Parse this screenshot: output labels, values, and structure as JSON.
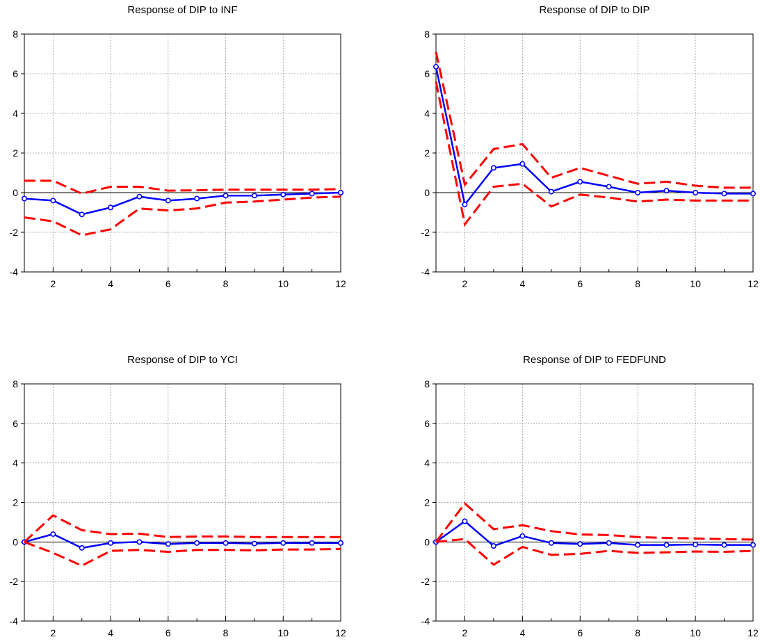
{
  "chart_data": [
    {
      "type": "line",
      "title": "Response of DIP to INF",
      "x": [
        1,
        2,
        3,
        4,
        5,
        6,
        7,
        8,
        9,
        10,
        11,
        12
      ],
      "xticks": [
        2,
        4,
        6,
        8,
        10,
        12
      ],
      "yticks": [
        -4,
        -2,
        0,
        2,
        4,
        6,
        8
      ],
      "xlim": [
        1,
        12
      ],
      "ylim": [
        -4,
        8
      ],
      "grid": true,
      "series": [
        {
          "role": "response",
          "color": "#0000ff",
          "style": "solid-markers",
          "values": [
            -0.3,
            -0.4,
            -1.1,
            -0.75,
            -0.2,
            -0.4,
            -0.3,
            -0.15,
            -0.15,
            -0.1,
            -0.05,
            0.0
          ]
        },
        {
          "role": "upper",
          "color": "#ff0000",
          "style": "dashed",
          "values": [
            0.6,
            0.6,
            -0.05,
            0.3,
            0.3,
            0.1,
            0.12,
            0.15,
            0.15,
            0.15,
            0.15,
            0.18
          ]
        },
        {
          "role": "lower",
          "color": "#ff0000",
          "style": "dashed",
          "values": [
            -1.25,
            -1.45,
            -2.15,
            -1.85,
            -0.8,
            -0.9,
            -0.8,
            -0.5,
            -0.45,
            -0.35,
            -0.25,
            -0.2
          ]
        }
      ]
    },
    {
      "type": "line",
      "title": "Response of DIP to DIP",
      "x": [
        1,
        2,
        3,
        4,
        5,
        6,
        7,
        8,
        9,
        10,
        11,
        12
      ],
      "xticks": [
        2,
        4,
        6,
        8,
        10,
        12
      ],
      "yticks": [
        -4,
        -2,
        0,
        2,
        4,
        6,
        8
      ],
      "xlim": [
        1,
        12
      ],
      "ylim": [
        -4,
        8
      ],
      "grid": true,
      "series": [
        {
          "role": "response",
          "color": "#0000ff",
          "style": "solid-markers",
          "values": [
            6.35,
            -0.6,
            1.25,
            1.45,
            0.05,
            0.55,
            0.3,
            0.0,
            0.1,
            0.0,
            -0.05,
            -0.05
          ]
        },
        {
          "role": "upper",
          "color": "#ff0000",
          "style": "dashed",
          "values": [
            7.1,
            0.4,
            2.2,
            2.45,
            0.75,
            1.25,
            0.85,
            0.45,
            0.55,
            0.35,
            0.25,
            0.25
          ]
        },
        {
          "role": "lower",
          "color": "#ff0000",
          "style": "dashed",
          "values": [
            5.6,
            -1.6,
            0.3,
            0.45,
            -0.7,
            -0.1,
            -0.25,
            -0.45,
            -0.35,
            -0.4,
            -0.4,
            -0.4
          ]
        }
      ]
    },
    {
      "type": "line",
      "title": "Response of DIP to YCI",
      "x": [
        1,
        2,
        3,
        4,
        5,
        6,
        7,
        8,
        9,
        10,
        11,
        12
      ],
      "xticks": [
        2,
        4,
        6,
        8,
        10,
        12
      ],
      "yticks": [
        -4,
        -2,
        0,
        2,
        4,
        6,
        8
      ],
      "xlim": [
        1,
        12
      ],
      "ylim": [
        -4,
        8
      ],
      "grid": true,
      "series": [
        {
          "role": "response",
          "color": "#0000ff",
          "style": "solid-markers",
          "values": [
            0.0,
            0.4,
            -0.3,
            -0.05,
            0.0,
            -0.1,
            -0.05,
            -0.05,
            -0.08,
            -0.05,
            -0.05,
            -0.05
          ]
        },
        {
          "role": "upper",
          "color": "#ff0000",
          "style": "dashed",
          "values": [
            0.0,
            1.35,
            0.6,
            0.4,
            0.42,
            0.25,
            0.28,
            0.28,
            0.25,
            0.25,
            0.25,
            0.25
          ]
        },
        {
          "role": "lower",
          "color": "#ff0000",
          "style": "dashed",
          "values": [
            0.0,
            -0.55,
            -1.2,
            -0.45,
            -0.4,
            -0.5,
            -0.4,
            -0.4,
            -0.42,
            -0.38,
            -0.38,
            -0.35
          ]
        }
      ]
    },
    {
      "type": "line",
      "title": "Response of DIP to FEDFUND",
      "x": [
        1,
        2,
        3,
        4,
        5,
        6,
        7,
        8,
        9,
        10,
        11,
        12
      ],
      "xticks": [
        2,
        4,
        6,
        8,
        10,
        12
      ],
      "yticks": [
        -4,
        -2,
        0,
        2,
        4,
        6,
        8
      ],
      "xlim": [
        1,
        12
      ],
      "ylim": [
        -4,
        8
      ],
      "grid": true,
      "series": [
        {
          "role": "response",
          "color": "#0000ff",
          "style": "solid-markers",
          "values": [
            0.0,
            1.05,
            -0.2,
            0.3,
            -0.05,
            -0.1,
            -0.05,
            -0.15,
            -0.15,
            -0.13,
            -0.15,
            -0.15
          ]
        },
        {
          "role": "upper",
          "color": "#ff0000",
          "style": "dashed",
          "values": [
            0.0,
            1.95,
            0.65,
            0.85,
            0.55,
            0.38,
            0.35,
            0.25,
            0.2,
            0.18,
            0.15,
            0.12
          ]
        },
        {
          "role": "lower",
          "color": "#ff0000",
          "style": "dashed",
          "values": [
            0.0,
            0.15,
            -1.15,
            -0.25,
            -0.65,
            -0.6,
            -0.45,
            -0.55,
            -0.52,
            -0.48,
            -0.5,
            -0.45
          ]
        }
      ]
    }
  ]
}
